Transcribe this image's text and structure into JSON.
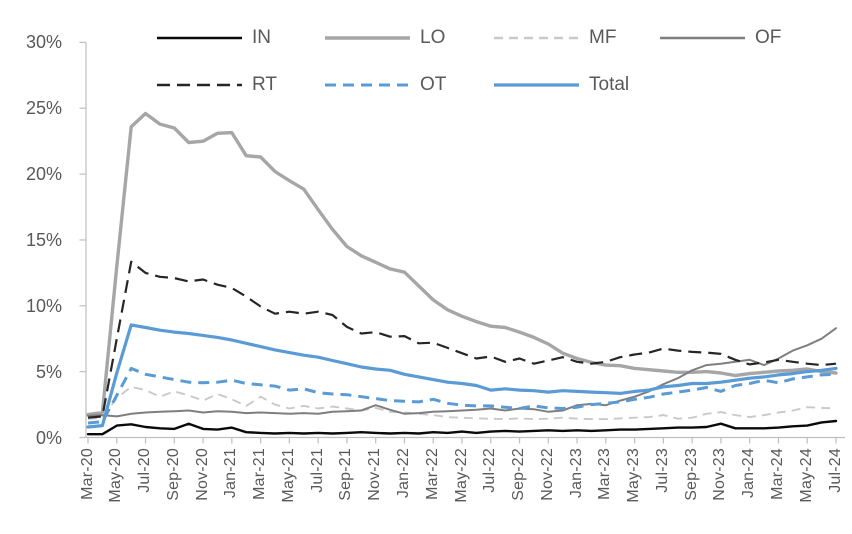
{
  "colors": {
    "axis_line": "#bfbfbf",
    "axis_text": "#595959",
    "accent_blue": "#5b9bd5",
    "gray_light": "#c9c9c9",
    "gray_mid": "#a6a6a6",
    "gray_dark": "#7f7f7f",
    "near_black": "#262626",
    "black": "#0a0a0a"
  },
  "chart_data": {
    "type": "line",
    "title": "",
    "xlabel": "",
    "ylabel": "",
    "ylim": [
      0,
      30
    ],
    "grid": false,
    "legend_position": "top",
    "y_ticks_pct": [
      0,
      5,
      10,
      15,
      20,
      25,
      30
    ],
    "y_tick_labels": [
      "0%",
      "5%",
      "10%",
      "15%",
      "20%",
      "25%",
      "30%"
    ],
    "x": [
      "Mar-20",
      "Apr-20",
      "May-20",
      "Jun-20",
      "Jul-20",
      "Aug-20",
      "Sep-20",
      "Oct-20",
      "Nov-20",
      "Dec-20",
      "Jan-21",
      "Feb-21",
      "Mar-21",
      "Apr-21",
      "May-21",
      "Jun-21",
      "Jul-21",
      "Aug-21",
      "Sep-21",
      "Oct-21",
      "Nov-21",
      "Dec-21",
      "Jan-22",
      "Feb-22",
      "Mar-22",
      "Apr-22",
      "May-22",
      "Jun-22",
      "Jul-22",
      "Aug-22",
      "Sep-22",
      "Oct-22",
      "Nov-22",
      "Dec-22",
      "Jan-23",
      "Feb-23",
      "Mar-23",
      "Apr-23",
      "May-23",
      "Jun-23",
      "Jul-23",
      "Aug-23",
      "Sep-23",
      "Oct-23",
      "Nov-23",
      "Dec-23",
      "Jan-24",
      "Feb-24",
      "Mar-24",
      "Apr-24",
      "May-24",
      "Jun-24",
      "Jul-24"
    ],
    "x_tick_labels": [
      "Mar-20",
      "May-20",
      "Jul-20",
      "Sep-20",
      "Nov-20",
      "Jan-21",
      "Mar-21",
      "May-21",
      "Jul-21",
      "Sep-21",
      "Nov-21",
      "Jan-22",
      "Mar-22",
      "May-22",
      "Jul-22",
      "Sep-22",
      "Nov-22",
      "Jan-23",
      "Mar-23",
      "May-23",
      "Jul-23",
      "Sep-23",
      "Nov-23",
      "Jan-24",
      "Mar-24",
      "May-24",
      "Jul-24"
    ],
    "x_label_every": 2,
    "legend_rows": [
      [
        "IN",
        "LO",
        "MF",
        "OF"
      ],
      [
        "RT",
        "OT",
        "Total"
      ]
    ],
    "series": [
      {
        "name": "IN",
        "color": "#0a0a0a",
        "style": "solid",
        "dash": "",
        "width": 2.4,
        "values": [
          0.25,
          0.25,
          0.9,
          1.0,
          0.8,
          0.7,
          0.65,
          1.05,
          0.65,
          0.6,
          0.75,
          0.4,
          0.35,
          0.3,
          0.35,
          0.3,
          0.35,
          0.3,
          0.35,
          0.4,
          0.35,
          0.3,
          0.35,
          0.3,
          0.4,
          0.35,
          0.45,
          0.35,
          0.45,
          0.5,
          0.45,
          0.5,
          0.55,
          0.5,
          0.55,
          0.5,
          0.55,
          0.6,
          0.6,
          0.65,
          0.7,
          0.75,
          0.75,
          0.8,
          1.05,
          0.7,
          0.7,
          0.7,
          0.75,
          0.85,
          0.9,
          1.15,
          1.25
        ]
      },
      {
        "name": "LO",
        "color": "#a6a6a6",
        "style": "solid",
        "dash": "",
        "width": 3.4,
        "values": [
          1.75,
          1.9,
          13.0,
          23.6,
          24.6,
          23.8,
          23.5,
          22.4,
          22.5,
          23.1,
          23.15,
          21.4,
          21.3,
          20.2,
          19.5,
          18.85,
          17.3,
          15.8,
          14.5,
          13.8,
          13.3,
          12.8,
          12.55,
          11.5,
          10.45,
          9.7,
          9.2,
          8.8,
          8.45,
          8.35,
          8.0,
          7.6,
          7.1,
          6.4,
          6.0,
          5.7,
          5.5,
          5.45,
          5.25,
          5.15,
          5.05,
          4.95,
          4.95,
          5.0,
          4.9,
          4.7,
          4.85,
          4.95,
          5.05,
          5.1,
          5.2,
          5.0,
          4.9
        ]
      },
      {
        "name": "MF",
        "color": "#c9c9c9",
        "style": "dashed",
        "dash": "9 6",
        "width": 1.9,
        "values": [
          1.4,
          1.5,
          3.0,
          3.85,
          3.6,
          3.1,
          3.5,
          3.2,
          2.8,
          3.3,
          2.9,
          2.4,
          3.1,
          2.5,
          2.2,
          2.4,
          2.2,
          2.35,
          2.2,
          2.05,
          2.25,
          1.95,
          1.9,
          1.8,
          1.7,
          1.55,
          1.5,
          1.45,
          1.43,
          1.4,
          1.45,
          1.4,
          1.43,
          1.5,
          1.43,
          1.4,
          1.4,
          1.45,
          1.5,
          1.55,
          1.7,
          1.43,
          1.5,
          1.8,
          1.93,
          1.7,
          1.55,
          1.7,
          1.9,
          2.05,
          2.3,
          2.25,
          2.2
        ]
      },
      {
        "name": "OF",
        "color": "#7f7f7f",
        "style": "solid",
        "dash": "",
        "width": 2.0,
        "values": [
          1.65,
          1.7,
          1.6,
          1.8,
          1.9,
          1.95,
          2.0,
          2.05,
          1.9,
          2.0,
          1.95,
          1.85,
          1.9,
          1.85,
          1.8,
          1.85,
          1.8,
          1.95,
          2.0,
          2.05,
          2.45,
          2.1,
          1.8,
          1.85,
          1.95,
          2.0,
          2.05,
          2.1,
          2.2,
          2.05,
          2.2,
          2.15,
          1.95,
          2.05,
          2.45,
          2.55,
          2.45,
          2.8,
          3.1,
          3.5,
          4.05,
          4.5,
          5.1,
          5.5,
          5.6,
          5.75,
          5.9,
          5.5,
          6.0,
          6.6,
          7.0,
          7.5,
          8.3
        ]
      },
      {
        "name": "RT",
        "color": "#262626",
        "style": "dashed",
        "dash": "13 7",
        "width": 2.2,
        "values": [
          1.5,
          1.6,
          7.5,
          13.35,
          12.5,
          12.2,
          12.1,
          11.85,
          12.0,
          11.6,
          11.35,
          10.7,
          9.95,
          9.4,
          9.55,
          9.4,
          9.55,
          9.3,
          8.4,
          7.9,
          8.0,
          7.65,
          7.7,
          7.15,
          7.2,
          6.8,
          6.4,
          6.0,
          6.15,
          5.75,
          6.0,
          5.6,
          5.85,
          6.1,
          5.75,
          5.6,
          5.75,
          6.1,
          6.3,
          6.45,
          6.75,
          6.6,
          6.5,
          6.45,
          6.35,
          5.9,
          5.55,
          5.7,
          5.9,
          5.75,
          5.6,
          5.5,
          5.6
        ]
      },
      {
        "name": "OT",
        "color": "#5b9bd5",
        "style": "dashed",
        "dash": "11 7",
        "width": 3.0,
        "values": [
          1.1,
          1.2,
          3.2,
          5.25,
          4.8,
          4.6,
          4.4,
          4.2,
          4.15,
          4.2,
          4.35,
          4.1,
          4.0,
          3.9,
          3.6,
          3.7,
          3.4,
          3.3,
          3.25,
          3.1,
          2.95,
          2.8,
          2.75,
          2.7,
          2.9,
          2.6,
          2.45,
          2.4,
          2.4,
          2.3,
          2.2,
          2.4,
          2.25,
          2.2,
          2.3,
          2.5,
          2.6,
          2.7,
          2.9,
          3.05,
          3.3,
          3.45,
          3.6,
          3.8,
          3.5,
          3.95,
          4.1,
          4.35,
          4.15,
          4.45,
          4.6,
          4.75,
          4.8
        ]
      },
      {
        "name": "Total",
        "color": "#5b9bd5",
        "style": "solid",
        "dash": "",
        "width": 3.2,
        "values": [
          0.8,
          0.9,
          4.9,
          8.55,
          8.35,
          8.15,
          8.0,
          7.9,
          7.75,
          7.6,
          7.4,
          7.15,
          6.9,
          6.65,
          6.45,
          6.25,
          6.1,
          5.85,
          5.6,
          5.35,
          5.2,
          5.1,
          4.8,
          4.6,
          4.4,
          4.2,
          4.1,
          3.95,
          3.6,
          3.7,
          3.6,
          3.55,
          3.45,
          3.55,
          3.5,
          3.45,
          3.4,
          3.35,
          3.5,
          3.6,
          3.85,
          3.95,
          4.1,
          4.1,
          4.2,
          4.35,
          4.5,
          4.6,
          4.75,
          4.85,
          5.0,
          5.1,
          5.25
        ]
      }
    ]
  }
}
